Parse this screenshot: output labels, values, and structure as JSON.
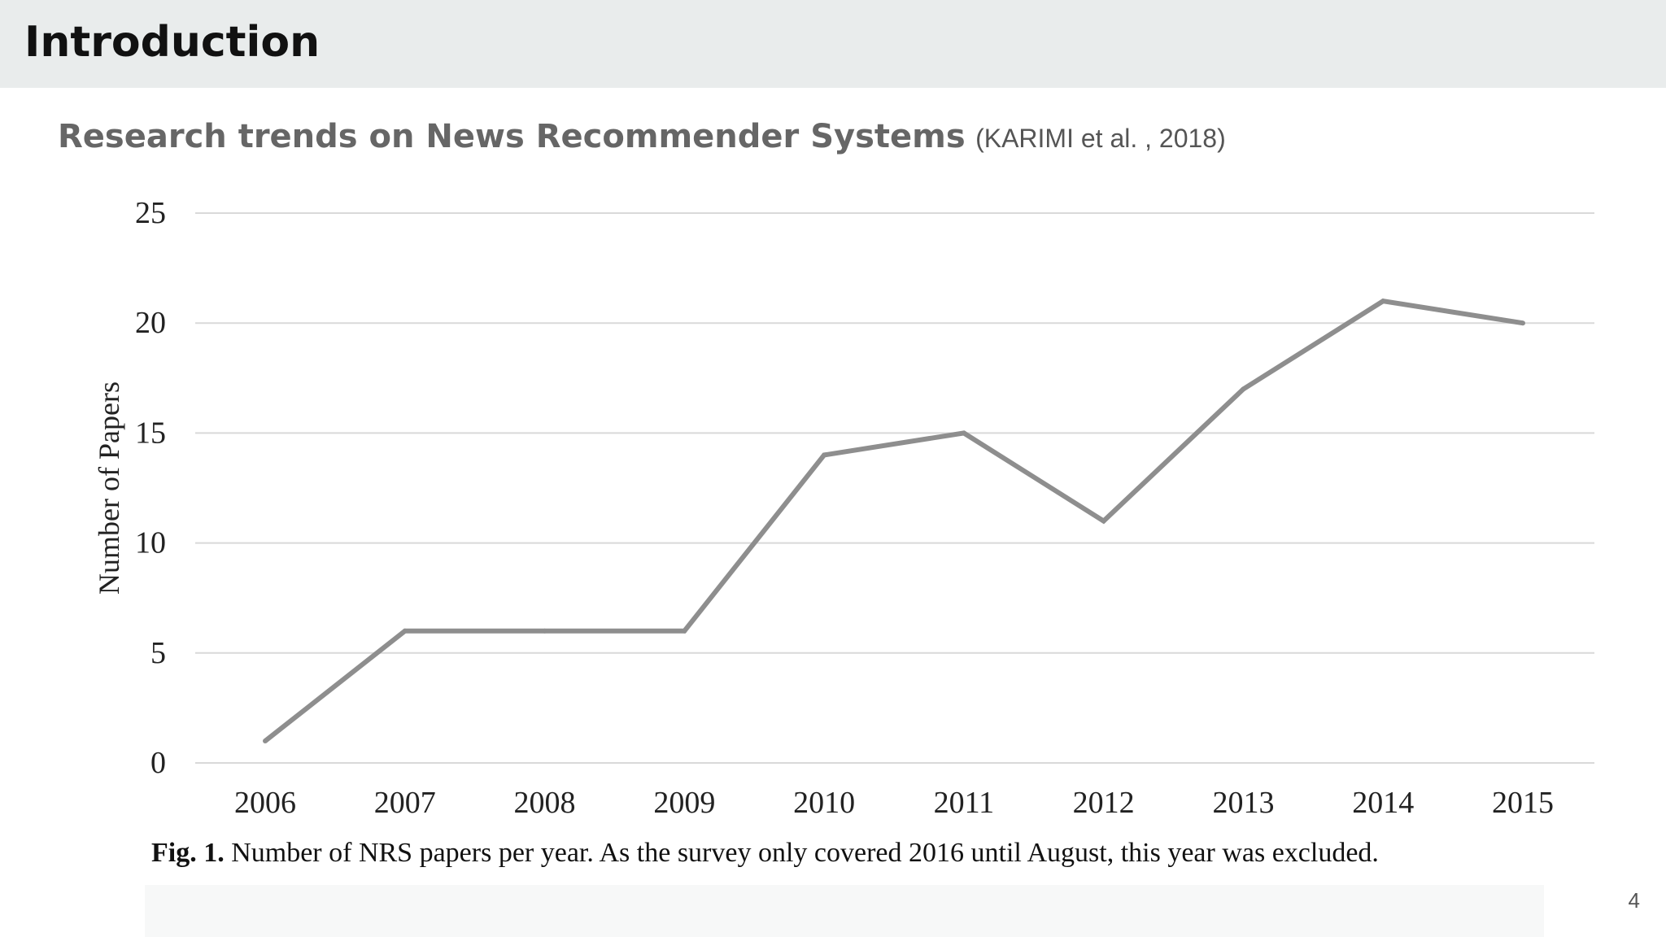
{
  "slide": {
    "title": "Introduction",
    "subtitle": "Research trends on News Recommender Systems",
    "citation": "(KARIMI et al. , 2018)",
    "page_number": "4"
  },
  "caption": {
    "label": "Fig. 1.",
    "text": "Number of NRS papers per year. As the survey only covered 2016 until August, this year was excluded."
  },
  "colors": {
    "line": "#8e8e8e",
    "grid": "#d9d9d9",
    "title_bar": "#e9ecec"
  },
  "chart_data": {
    "type": "line",
    "categories": [
      "2006",
      "2007",
      "2008",
      "2009",
      "2010",
      "2011",
      "2012",
      "2013",
      "2014",
      "2015"
    ],
    "series": [
      {
        "values": [
          1,
          6,
          6,
          6,
          14,
          15,
          11,
          17,
          21,
          20
        ]
      }
    ],
    "ylabel": "Number of Papers",
    "xlabel": "",
    "ylim": [
      0,
      25
    ],
    "yticks": [
      0,
      5,
      10,
      15,
      20,
      25
    ],
    "grid": true,
    "legend": "none"
  }
}
